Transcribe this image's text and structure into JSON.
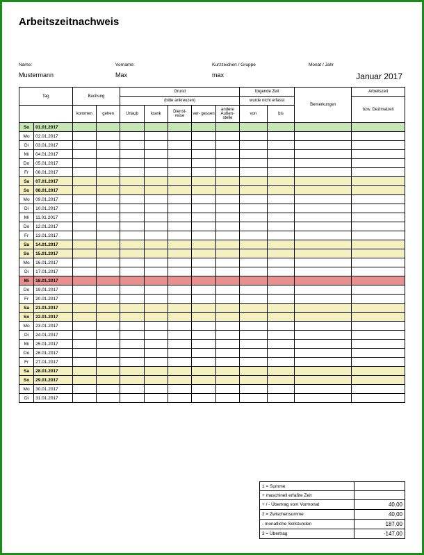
{
  "title": "Arbeitszeitnachweis",
  "labels": {
    "name": "Name:",
    "vorname": "Vorname:",
    "kurz": "Kurzzeichen / Gruppe",
    "monat": "Monat / Jahr"
  },
  "person": {
    "name": "Mustermann",
    "vorname": "Max",
    "kurz": "max",
    "monat": "Januar 2017"
  },
  "headers": {
    "tag": "Tag",
    "buchung": "Buchung",
    "kommen": "kommen",
    "gehen": "gehen",
    "grund": "Grund",
    "grund_sub": "(bitte ankreuzen)",
    "urlaub": "Urlaub",
    "krank": "krank",
    "dienstreise": "Dienst-\nreise",
    "vergessen": "ver-\ngessen",
    "aussenstelle": "andere\nAußen-\nstelle",
    "folgende": "folgende Zeit",
    "folgende_sub": "wurde nicht erfasst",
    "von": "von",
    "bis": "bis",
    "bemerkungen": "Bemerkungen",
    "arbeitszeit": "Arbeitszeit",
    "arbeitszeit_sub": "bzw. Dezimalzeit"
  },
  "colors": {
    "green": "#c6e6b4",
    "yellow": "#f5f0c0",
    "red": "#e89090",
    "white": "#ffffff"
  },
  "rows": [
    {
      "dow": "So",
      "date": "01.01.2017",
      "hl": "green",
      "bold": true
    },
    {
      "dow": "Mo",
      "date": "02.01.2017",
      "hl": "white",
      "bold": false
    },
    {
      "dow": "Di",
      "date": "03.01.2017",
      "hl": "white",
      "bold": false
    },
    {
      "dow": "Mi",
      "date": "04.01.2017",
      "hl": "white",
      "bold": false
    },
    {
      "dow": "Do",
      "date": "05.01.2017",
      "hl": "white",
      "bold": false
    },
    {
      "dow": "Fr",
      "date": "06.01.2017",
      "hl": "white",
      "bold": false
    },
    {
      "dow": "Sa",
      "date": "07.01.2017",
      "hl": "yellow",
      "bold": true
    },
    {
      "dow": "So",
      "date": "08.01.2017",
      "hl": "yellow",
      "bold": true
    },
    {
      "dow": "Mo",
      "date": "09.01.2017",
      "hl": "white",
      "bold": false
    },
    {
      "dow": "Di",
      "date": "10.01.2017",
      "hl": "white",
      "bold": false
    },
    {
      "dow": "Mi",
      "date": "11.01.2017",
      "hl": "white",
      "bold": false
    },
    {
      "dow": "Do",
      "date": "12.01.2017",
      "hl": "white",
      "bold": false
    },
    {
      "dow": "Fr",
      "date": "13.01.2017",
      "hl": "white",
      "bold": false
    },
    {
      "dow": "Sa",
      "date": "14.01.2017",
      "hl": "yellow",
      "bold": true
    },
    {
      "dow": "So",
      "date": "15.01.2017",
      "hl": "yellow",
      "bold": true
    },
    {
      "dow": "Mo",
      "date": "16.01.2017",
      "hl": "white",
      "bold": false
    },
    {
      "dow": "Di",
      "date": "17.01.2017",
      "hl": "white",
      "bold": false
    },
    {
      "dow": "Mi",
      "date": "18.01.2017",
      "hl": "red",
      "bold": true
    },
    {
      "dow": "Do",
      "date": "19.01.2017",
      "hl": "white",
      "bold": false
    },
    {
      "dow": "Fr",
      "date": "20.01.2017",
      "hl": "white",
      "bold": false
    },
    {
      "dow": "Sa",
      "date": "21.01.2017",
      "hl": "yellow",
      "bold": true
    },
    {
      "dow": "So",
      "date": "22.01.2017",
      "hl": "yellow",
      "bold": true
    },
    {
      "dow": "Mo",
      "date": "23.01.2017",
      "hl": "white",
      "bold": false
    },
    {
      "dow": "Di",
      "date": "24.01.2017",
      "hl": "white",
      "bold": false
    },
    {
      "dow": "Mi",
      "date": "25.01.2017",
      "hl": "white",
      "bold": false
    },
    {
      "dow": "Do",
      "date": "26.01.2017",
      "hl": "white",
      "bold": false
    },
    {
      "dow": "Fr",
      "date": "27.01.2017",
      "hl": "white",
      "bold": false
    },
    {
      "dow": "Sa",
      "date": "28.01.2017",
      "hl": "yellow",
      "bold": true
    },
    {
      "dow": "So",
      "date": "29.01.2017",
      "hl": "yellow",
      "bold": true
    },
    {
      "dow": "Mo",
      "date": "30.01.2017",
      "hl": "white",
      "bold": false
    },
    {
      "dow": "Di",
      "date": "31.01.2017",
      "hl": "white",
      "bold": false
    }
  ],
  "footer": [
    {
      "label": "1 = Summe",
      "value": ""
    },
    {
      "label": "+ maschinell erfaßte Zeit",
      "value": ""
    },
    {
      "label": "+ / - Übertrag vom Vormonat",
      "value": "40,00"
    },
    {
      "label": "2 = Zwischensumme",
      "value": "40,00"
    },
    {
      "label": "- monatliche Sollstunden",
      "value": "187,00"
    },
    {
      "label": "3 = Übertrag",
      "value": "-147,00"
    }
  ]
}
